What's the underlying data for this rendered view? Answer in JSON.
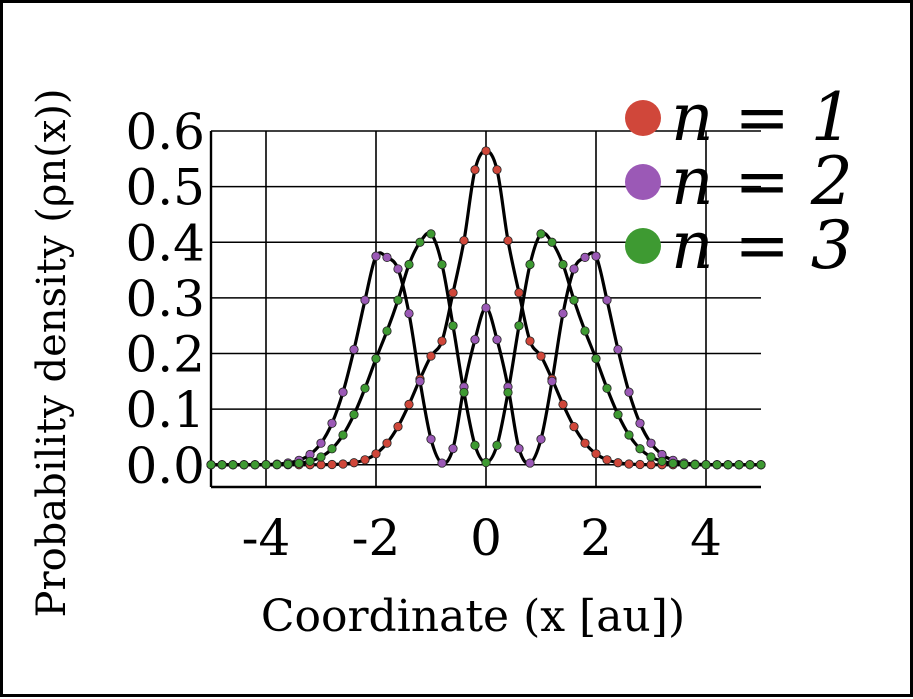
{
  "chart_data": {
    "type": "line",
    "title": "",
    "xlabel": "Coordinate (x [au])",
    "ylabel": "Probability density (ρn(x))",
    "xlim": [
      -5,
      5
    ],
    "ylim": [
      -0.04,
      0.6
    ],
    "grid": true,
    "legend_position": "top-right",
    "x_ticks": [
      {
        "value": -4,
        "label": "-4"
      },
      {
        "value": -2,
        "label": "-2"
      },
      {
        "value": 0,
        "label": "0"
      },
      {
        "value": 2,
        "label": "2"
      },
      {
        "value": 4,
        "label": "4"
      }
    ],
    "y_ticks": [
      {
        "value": 0.0,
        "label": "0.0"
      },
      {
        "value": 0.1,
        "label": "0.1"
      },
      {
        "value": 0.2,
        "label": "0.2"
      },
      {
        "value": 0.3,
        "label": "0.3"
      },
      {
        "value": 0.4,
        "label": "0.4"
      },
      {
        "value": 0.5,
        "label": "0.5"
      },
      {
        "value": 0.6,
        "label": "0.6"
      }
    ],
    "series": [
      {
        "name": "n = 1",
        "color": "#d0473a",
        "x": [
          -5.0,
          -4.8,
          -4.6,
          -4.4,
          -4.2,
          -4.0,
          -3.8,
          -3.6,
          -3.4,
          -3.2,
          -3.0,
          -2.8,
          -2.6,
          -2.4,
          -2.2,
          -2.0,
          -1.8,
          -1.6,
          -1.4,
          -1.2,
          -1.0,
          -0.8,
          -0.6,
          -0.4,
          -0.2,
          0.0,
          0.2,
          0.4,
          0.6,
          0.8,
          1.0,
          1.2,
          1.4,
          1.6,
          1.8,
          2.0,
          2.2,
          2.4,
          2.6,
          2.8,
          3.0,
          3.2,
          3.4,
          3.6,
          3.8,
          4.0,
          4.2,
          4.4,
          4.6,
          4.8,
          5.0
        ],
        "y": [
          0.0,
          0.0,
          0.0,
          0.0,
          0.0,
          0.0,
          0.0,
          0.0,
          0.0,
          0.0,
          0.0001,
          0.0004,
          0.0013,
          0.0036,
          0.0089,
          0.0197,
          0.0388,
          0.0686,
          0.1085,
          0.1539,
          0.1954,
          0.2224,
          0.3092,
          0.403,
          0.5303,
          0.5642,
          0.5303,
          0.403,
          0.3092,
          0.2224,
          0.1954,
          0.1539,
          0.1085,
          0.0686,
          0.0388,
          0.0197,
          0.0089,
          0.0036,
          0.0013,
          0.0004,
          0.0001,
          0.0,
          0.0,
          0.0,
          0.0,
          0.0,
          0.0,
          0.0,
          0.0,
          0.0,
          0.0
        ]
      },
      {
        "name": "n = 2",
        "color": "#9b59b6",
        "x": [
          -5.0,
          -4.8,
          -4.6,
          -4.4,
          -4.2,
          -4.0,
          -3.8,
          -3.6,
          -3.4,
          -3.2,
          -3.0,
          -2.8,
          -2.6,
          -2.4,
          -2.2,
          -2.0,
          -1.8,
          -1.6,
          -1.4,
          -1.2,
          -1.0,
          -0.8,
          -0.6,
          -0.4,
          -0.2,
          0.0,
          0.2,
          0.4,
          0.6,
          0.8,
          1.0,
          1.2,
          1.4,
          1.6,
          1.8,
          2.0,
          2.2,
          2.4,
          2.6,
          2.8,
          3.0,
          3.2,
          3.4,
          3.6,
          3.8,
          4.0,
          4.2,
          4.4,
          4.6,
          4.8,
          5.0
        ],
        "y": [
          0.0,
          0.0,
          0.0,
          0.0,
          0.0001,
          0.0004,
          0.0012,
          0.0032,
          0.008,
          0.0184,
          0.0388,
          0.0745,
          0.1305,
          0.2072,
          0.296,
          0.375,
          0.3728,
          0.352,
          0.272,
          0.15,
          0.046,
          0.003,
          0.029,
          0.14,
          0.225,
          0.2821,
          0.225,
          0.14,
          0.029,
          0.003,
          0.046,
          0.15,
          0.272,
          0.352,
          0.3728,
          0.375,
          0.296,
          0.2072,
          0.1305,
          0.0745,
          0.0388,
          0.0184,
          0.008,
          0.0032,
          0.0012,
          0.0004,
          0.0001,
          0.0,
          0.0,
          0.0,
          0.0
        ]
      },
      {
        "name": "n = 3",
        "color": "#3e9a32",
        "x": [
          -5.0,
          -4.8,
          -4.6,
          -4.4,
          -4.2,
          -4.0,
          -3.8,
          -3.6,
          -3.4,
          -3.2,
          -3.0,
          -2.8,
          -2.6,
          -2.4,
          -2.2,
          -2.0,
          -1.8,
          -1.6,
          -1.4,
          -1.2,
          -1.0,
          -0.8,
          -0.6,
          -0.4,
          -0.2,
          0.0,
          0.2,
          0.4,
          0.6,
          0.8,
          1.0,
          1.2,
          1.4,
          1.6,
          1.8,
          2.0,
          2.2,
          2.4,
          2.6,
          2.8,
          3.0,
          3.2,
          3.4,
          3.6,
          3.8,
          4.0,
          4.2,
          4.4,
          4.6,
          4.8,
          5.0
        ],
        "y": [
          0.0,
          0.0,
          0.0,
          0.0,
          0.0,
          0.0001,
          0.0003,
          0.0009,
          0.0025,
          0.0062,
          0.014,
          0.0287,
          0.0535,
          0.0902,
          0.1375,
          0.1907,
          0.2405,
          0.296,
          0.36,
          0.4,
          0.415,
          0.36,
          0.25,
          0.13,
          0.035,
          0.004,
          0.035,
          0.13,
          0.25,
          0.36,
          0.415,
          0.4,
          0.36,
          0.296,
          0.2405,
          0.1907,
          0.1375,
          0.0902,
          0.0535,
          0.0287,
          0.014,
          0.0062,
          0.0025,
          0.0009,
          0.0003,
          0.0001,
          0.0,
          0.0,
          0.0,
          0.0,
          0.0
        ]
      }
    ]
  }
}
